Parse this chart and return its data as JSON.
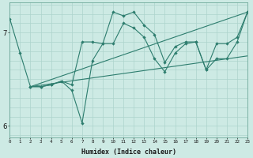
{
  "xlabel": "Humidex (Indice chaleur)",
  "bg_color": "#cdeae4",
  "line_color": "#2d7d6e",
  "grid_color": "#add4cc",
  "xlim": [
    0,
    23
  ],
  "ylim": [
    5.88,
    7.32
  ],
  "yticks": [
    6,
    7
  ],
  "lines": [
    {
      "x": [
        0,
        1,
        2,
        3,
        4,
        5,
        6,
        7,
        8,
        9,
        10,
        11,
        12,
        13,
        14,
        15,
        16,
        17,
        18,
        19,
        20,
        21,
        22,
        23
      ],
      "y": [
        7.15,
        6.78,
        6.42,
        6.42,
        6.44,
        6.48,
        6.38,
        6.03,
        6.7,
        6.88,
        6.88,
        7.1,
        7.05,
        6.95,
        6.72,
        6.58,
        6.78,
        6.88,
        6.9,
        6.6,
        6.88,
        6.88,
        6.95,
        7.22
      ],
      "marker": true
    },
    {
      "x": [
        2,
        3,
        4,
        5,
        6,
        7,
        8,
        9,
        10,
        11,
        12,
        13,
        14,
        15,
        16,
        17,
        18,
        19,
        20,
        21,
        22,
        23
      ],
      "y": [
        6.42,
        6.42,
        6.44,
        6.48,
        6.44,
        6.9,
        6.9,
        6.88,
        7.22,
        7.18,
        7.22,
        7.08,
        6.98,
        6.68,
        6.85,
        6.9,
        6.9,
        6.6,
        6.72,
        6.72,
        6.9,
        7.22
      ],
      "marker": true
    },
    {
      "x": [
        2,
        23
      ],
      "y": [
        6.42,
        7.22
      ],
      "marker": false
    },
    {
      "x": [
        2,
        23
      ],
      "y": [
        6.42,
        6.75
      ],
      "marker": false
    }
  ]
}
